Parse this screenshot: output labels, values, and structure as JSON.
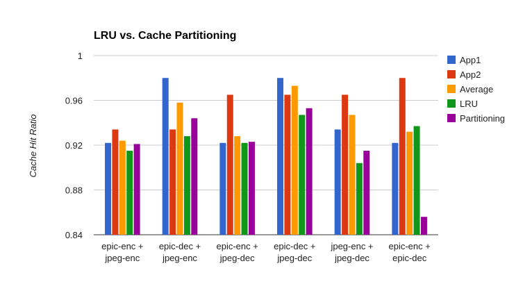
{
  "chart_data": {
    "type": "bar",
    "title": "LRU vs. Cache Partitioning",
    "xlabel": "",
    "ylabel": "Cache Hit Ratio",
    "ylim": [
      0.84,
      1.0
    ],
    "yticks": [
      "0.84",
      "0.88",
      "0.92",
      "0.96",
      "1"
    ],
    "grid": true,
    "legend_position": "right",
    "categories": [
      [
        "epic-enc +",
        "jpeg-enc"
      ],
      [
        "epic-dec +",
        "jpeg-enc"
      ],
      [
        "epic-enc +",
        "jpeg-dec"
      ],
      [
        "epic-dec +",
        "jpeg-dec"
      ],
      [
        "jpeg-enc +",
        "jpeg-dec"
      ],
      [
        "epic-enc +",
        "epic-dec"
      ]
    ],
    "series": [
      {
        "name": "App1",
        "color": "#3366cc",
        "values": [
          0.922,
          0.98,
          0.922,
          0.98,
          0.934,
          0.922
        ]
      },
      {
        "name": "App2",
        "color": "#dc3912",
        "values": [
          0.934,
          0.934,
          0.965,
          0.965,
          0.965,
          0.98
        ]
      },
      {
        "name": "Average",
        "color": "#ff9900",
        "values": [
          0.924,
          0.958,
          0.928,
          0.973,
          0.947,
          0.932
        ]
      },
      {
        "name": "LRU",
        "color": "#109618",
        "values": [
          0.915,
          0.928,
          0.922,
          0.947,
          0.904,
          0.937
        ]
      },
      {
        "name": "Partitioning",
        "color": "#990099",
        "values": [
          0.921,
          0.944,
          0.923,
          0.953,
          0.915,
          0.856
        ]
      }
    ]
  }
}
